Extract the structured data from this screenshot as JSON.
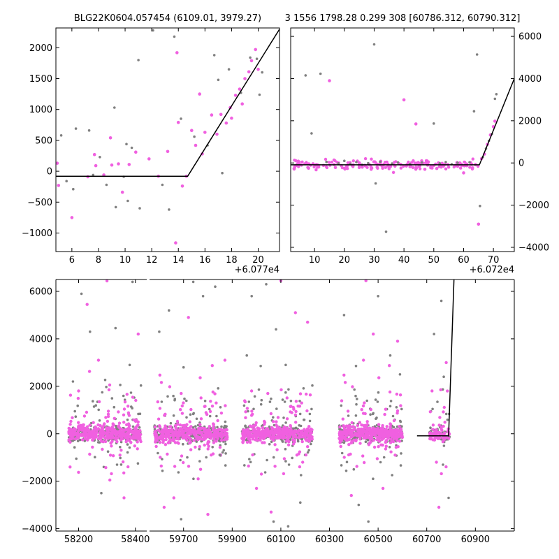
{
  "title_left": "BLG22K0604.057454 (6109.01, 3979.27)",
  "title_right": "3 1556 1798.28 0.299 308 [60786.312, 60790.312]",
  "colors": {
    "gray": "#808080",
    "magenta": "#f060e0",
    "model": "#000000"
  },
  "chart_data": [
    {
      "panel": "top-left",
      "type": "scatter",
      "x_offset_label": "+6.077e4",
      "xlim": [
        4.8,
        21.6
      ],
      "ylim": [
        -1300,
        2320
      ],
      "xticks": [
        6,
        8,
        10,
        12,
        14,
        16,
        18,
        20
      ],
      "yticks": [
        -1000,
        -500,
        0,
        500,
        1000,
        1500,
        2000
      ],
      "grid": false,
      "series": [
        {
          "color": "magenta",
          "points": [
            [
              4.9,
              130
            ],
            [
              5.0,
              -230
            ],
            [
              6.0,
              -750
            ],
            [
              7.2,
              -90
            ],
            [
              7.7,
              270
            ],
            [
              7.8,
              90
            ],
            [
              8.4,
              -60
            ],
            [
              8.9,
              540
            ],
            [
              9.0,
              100
            ],
            [
              9.5,
              120
            ],
            [
              9.8,
              -340
            ],
            [
              10.3,
              110
            ],
            [
              10.8,
              310
            ],
            [
              11.8,
              200
            ],
            [
              12.5,
              -80
            ],
            [
              13.2,
              320
            ],
            [
              13.8,
              -1160
            ],
            [
              13.9,
              1920
            ],
            [
              14.0,
              790
            ],
            [
              14.3,
              -240
            ],
            [
              14.6,
              -80
            ],
            [
              15.0,
              660
            ],
            [
              15.3,
              420
            ],
            [
              15.6,
              1250
            ],
            [
              15.8,
              280
            ],
            [
              16.0,
              630
            ],
            [
              16.5,
              910
            ],
            [
              16.9,
              600
            ],
            [
              17.2,
              920
            ],
            [
              17.6,
              780
            ],
            [
              17.9,
              1030
            ],
            [
              18.0,
              860
            ],
            [
              18.3,
              1230
            ],
            [
              18.6,
              1330
            ],
            [
              18.8,
              1090
            ],
            [
              19.0,
              1500
            ],
            [
              19.3,
              1610
            ],
            [
              19.5,
              1790
            ],
            [
              19.8,
              1970
            ],
            [
              20.0,
              1650
            ]
          ]
        },
        {
          "color": "gray",
          "points": [
            [
              5.2,
              580
            ],
            [
              5.6,
              -160
            ],
            [
              6.1,
              -290
            ],
            [
              6.3,
              690
            ],
            [
              7.3,
              660
            ],
            [
              7.6,
              -60
            ],
            [
              8.1,
              230
            ],
            [
              8.6,
              -220
            ],
            [
              9.2,
              1030
            ],
            [
              9.3,
              -580
            ],
            [
              9.9,
              -90
            ],
            [
              10.1,
              440
            ],
            [
              10.2,
              -480
            ],
            [
              10.5,
              380
            ],
            [
              11.0,
              1800
            ],
            [
              11.1,
              -600
            ],
            [
              12.1,
              2280
            ],
            [
              12.8,
              -220
            ],
            [
              13.3,
              -620
            ],
            [
              13.7,
              2180
            ],
            [
              14.2,
              850
            ],
            [
              15.2,
              560
            ],
            [
              16.2,
              420
            ],
            [
              16.7,
              1880
            ],
            [
              17.0,
              1480
            ],
            [
              17.3,
              -30
            ],
            [
              17.8,
              1650
            ],
            [
              18.7,
              1270
            ],
            [
              19.4,
              1840
            ],
            [
              19.9,
              1820
            ],
            [
              20.1,
              1240
            ],
            [
              20.3,
              1600
            ]
          ]
        }
      ],
      "model": {
        "x": [
          4.8,
          14.7,
          21.6
        ],
        "y": [
          -80,
          -80,
          2300
        ]
      }
    },
    {
      "panel": "top-right",
      "type": "scatter",
      "x_offset_label": "+6.072e4",
      "xlim": [
        2,
        77
      ],
      "ylim": [
        -4200,
        6400
      ],
      "xticks": [
        10,
        20,
        30,
        40,
        50,
        60,
        70
      ],
      "yticks": [
        -4000,
        -2000,
        0,
        2000,
        4000,
        6000
      ],
      "grid": false,
      "series": [
        {
          "color": "magenta",
          "points": [
            [
              8,
              -250
            ],
            [
              11,
              -200
            ],
            [
              13,
              -120
            ],
            [
              15,
              3900
            ],
            [
              17,
              -220
            ],
            [
              19,
              -130
            ],
            [
              21,
              -260
            ],
            [
              23,
              -90
            ],
            [
              25,
              -220
            ],
            [
              27,
              -140
            ],
            [
              29,
              -300
            ],
            [
              31,
              -200
            ],
            [
              33,
              -110
            ],
            [
              35,
              -270
            ],
            [
              37,
              -150
            ],
            [
              39,
              -240
            ],
            [
              40,
              2990
            ],
            [
              41,
              -80
            ],
            [
              43,
              -220
            ],
            [
              44,
              1850
            ],
            [
              45,
              -160
            ],
            [
              47,
              -300
            ],
            [
              48,
              -70
            ],
            [
              49,
              -180
            ],
            [
              51,
              -260
            ],
            [
              53,
              -90
            ],
            [
              55,
              -200
            ],
            [
              57,
              -150
            ],
            [
              59,
              -240
            ],
            [
              60,
              -470
            ],
            [
              61,
              -120
            ],
            [
              63,
              -230
            ],
            [
              64,
              -80
            ],
            [
              65,
              -2900
            ],
            [
              66,
              200
            ],
            [
              67,
              420
            ],
            [
              68,
              880
            ],
            [
              69,
              1330
            ],
            [
              70,
              1720
            ],
            [
              70.5,
              1980
            ]
          ]
        },
        {
          "color": "gray",
          "points": [
            [
              7,
              4150
            ],
            [
              9,
              1400
            ],
            [
              12,
              4230
            ],
            [
              14,
              50
            ],
            [
              18,
              -20
            ],
            [
              20,
              100
            ],
            [
              22,
              -40
            ],
            [
              24,
              40
            ],
            [
              26,
              -90
            ],
            [
              28,
              -10
            ],
            [
              30,
              5620
            ],
            [
              30.5,
              -970
            ],
            [
              32,
              60
            ],
            [
              34,
              -3260
            ],
            [
              36,
              -30
            ],
            [
              38,
              20
            ],
            [
              42,
              -50
            ],
            [
              46,
              20
            ],
            [
              50,
              1870
            ],
            [
              52,
              -20
            ],
            [
              54,
              40
            ],
            [
              56,
              -60
            ],
            [
              58,
              10
            ],
            [
              62,
              30
            ],
            [
              63.5,
              2450
            ],
            [
              64.5,
              5140
            ],
            [
              65.5,
              -2040
            ],
            [
              66.5,
              280
            ],
            [
              67.5,
              680
            ],
            [
              68.5,
              1050
            ],
            [
              69.5,
              1370
            ],
            [
              70.5,
              3040
            ],
            [
              71,
              3260
            ]
          ]
        }
      ],
      "model": {
        "x": [
          2,
          65.3,
          77
        ],
        "y": [
          -90,
          -90,
          4000
        ]
      }
    },
    {
      "panel": "bottom",
      "type": "scatter",
      "xlim_left": [
        58120,
        58440
      ],
      "xlim_right": [
        59560,
        61060
      ],
      "ylim": [
        -4100,
        6500
      ],
      "xticks_left": [
        58200,
        58400
      ],
      "xticks_right": [
        59700,
        59900,
        60100,
        60300,
        60500,
        60700,
        60900
      ],
      "yticks": [
        -4000,
        -2000,
        0,
        2000,
        4000,
        6000
      ],
      "grid": false,
      "seasons": [
        {
          "x": [
            58165,
            58420
          ],
          "outliers": [
            [
              58210,
              5900
            ],
            [
              58230,
              5450
            ],
            [
              58280,
              -2500
            ],
            [
              58310,
              -1950
            ],
            [
              58330,
              4450
            ],
            [
              58360,
              -2700
            ],
            [
              58390,
              6400
            ],
            [
              58170,
              -1400
            ],
            [
              58180,
              2200
            ],
            [
              58300,
              6440
            ],
            [
              58350,
              -1300
            ],
            [
              58410,
              4200
            ],
            [
              58240,
              4300
            ],
            [
              58270,
              3100
            ],
            [
              58380,
              2900
            ]
          ]
        },
        {
          "x": [
            59580,
            59880
          ],
          "outliers": [
            [
              59640,
              5200
            ],
            [
              59660,
              -2700
            ],
            [
              59690,
              -3600
            ],
            [
              59720,
              4900
            ],
            [
              59740,
              6400
            ],
            [
              59760,
              -1900
            ],
            [
              59780,
              5800
            ],
            [
              59800,
              -3400
            ],
            [
              59830,
              6200
            ],
            [
              59870,
              3100
            ],
            [
              59600,
              4300
            ],
            [
              59620,
              -3100
            ],
            [
              59700,
              2800
            ],
            [
              59770,
              -1500
            ],
            [
              59850,
              -900
            ]
          ]
        },
        {
          "x": [
            59940,
            60230
          ],
          "outliers": [
            [
              59980,
              5800
            ],
            [
              60000,
              -2300
            ],
            [
              60040,
              6300
            ],
            [
              60060,
              -3300
            ],
            [
              60080,
              4400
            ],
            [
              60100,
              6450
            ],
            [
              60130,
              -3900
            ],
            [
              60160,
              5100
            ],
            [
              60180,
              -2900
            ],
            [
              60210,
              4700
            ],
            [
              59960,
              3300
            ],
            [
              60020,
              -1700
            ],
            [
              60120,
              2900
            ],
            [
              60190,
              -1200
            ],
            [
              60070,
              -3700
            ]
          ]
        },
        {
          "x": [
            60340,
            60600
          ],
          "outliers": [
            [
              60360,
              5000
            ],
            [
              60390,
              -2600
            ],
            [
              60420,
              -3000
            ],
            [
              60450,
              6450
            ],
            [
              60460,
              -3700
            ],
            [
              60480,
              4200
            ],
            [
              60500,
              5800
            ],
            [
              60520,
              -2300
            ],
            [
              60550,
              3300
            ],
            [
              60580,
              3900
            ],
            [
              60400,
              -1500
            ],
            [
              60440,
              3100
            ],
            [
              60510,
              -1200
            ],
            [
              60570,
              -900
            ],
            [
              60590,
              2500
            ]
          ]
        },
        {
          "x": [
            60710,
            60795
          ],
          "outliers": [
            [
              60730,
              4200
            ],
            [
              60750,
              -3100
            ],
            [
              60760,
              5600
            ],
            [
              60780,
              3000
            ],
            [
              60790,
              -2700
            ],
            [
              60740,
              -1200
            ],
            [
              60770,
              2400
            ],
            [
              60785,
              1800
            ]
          ]
        }
      ],
      "model": {
        "x": [
          60660,
          60790,
          60812
        ],
        "y": [
          -90,
          -90,
          6500
        ]
      }
    }
  ]
}
